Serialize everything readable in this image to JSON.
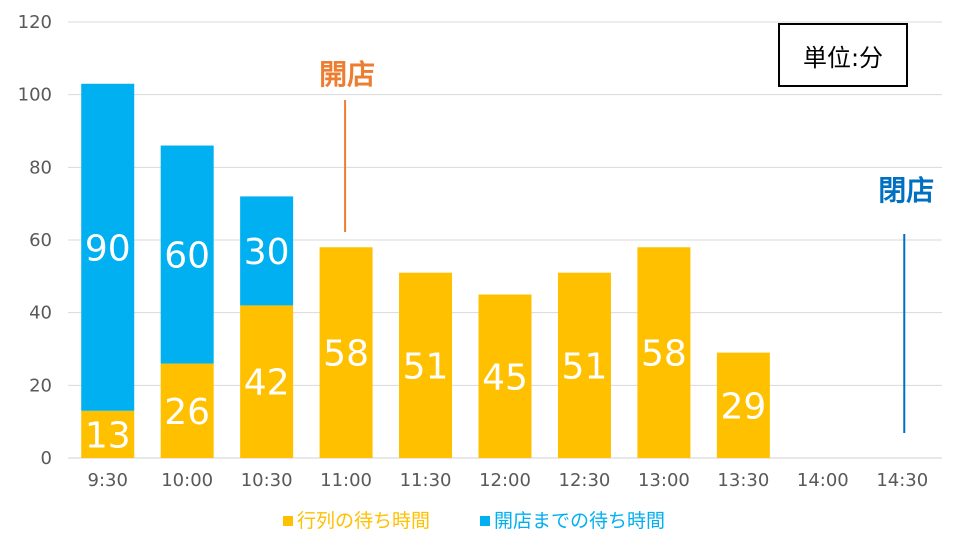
{
  "chart_data": {
    "type": "bar",
    "stacked": true,
    "categories": [
      "9:30",
      "10:00",
      "10:30",
      "11:00",
      "11:30",
      "12:00",
      "12:30",
      "13:00",
      "13:30",
      "14:00",
      "14:30"
    ],
    "series": [
      {
        "name": "行列の待ち時間",
        "color": "#FFC000",
        "values": [
          13,
          26,
          42,
          58,
          51,
          45,
          51,
          58,
          29,
          null,
          null
        ]
      },
      {
        "name": "開店までの待ち時間",
        "color": "#00B0F0",
        "values": [
          90,
          60,
          30,
          null,
          null,
          null,
          null,
          null,
          null,
          null,
          null
        ]
      }
    ],
    "ylim": [
      0,
      120
    ],
    "yticks": [
      0,
      20,
      40,
      60,
      80,
      100,
      120
    ],
    "grid": true,
    "legend": "bottom",
    "unit_label": "単位:分",
    "annotations": [
      {
        "text": "開店",
        "category": "11:00",
        "color": "#ED7D31"
      },
      {
        "text": "閉店",
        "category": "14:30",
        "color": "#0070C0"
      }
    ]
  }
}
